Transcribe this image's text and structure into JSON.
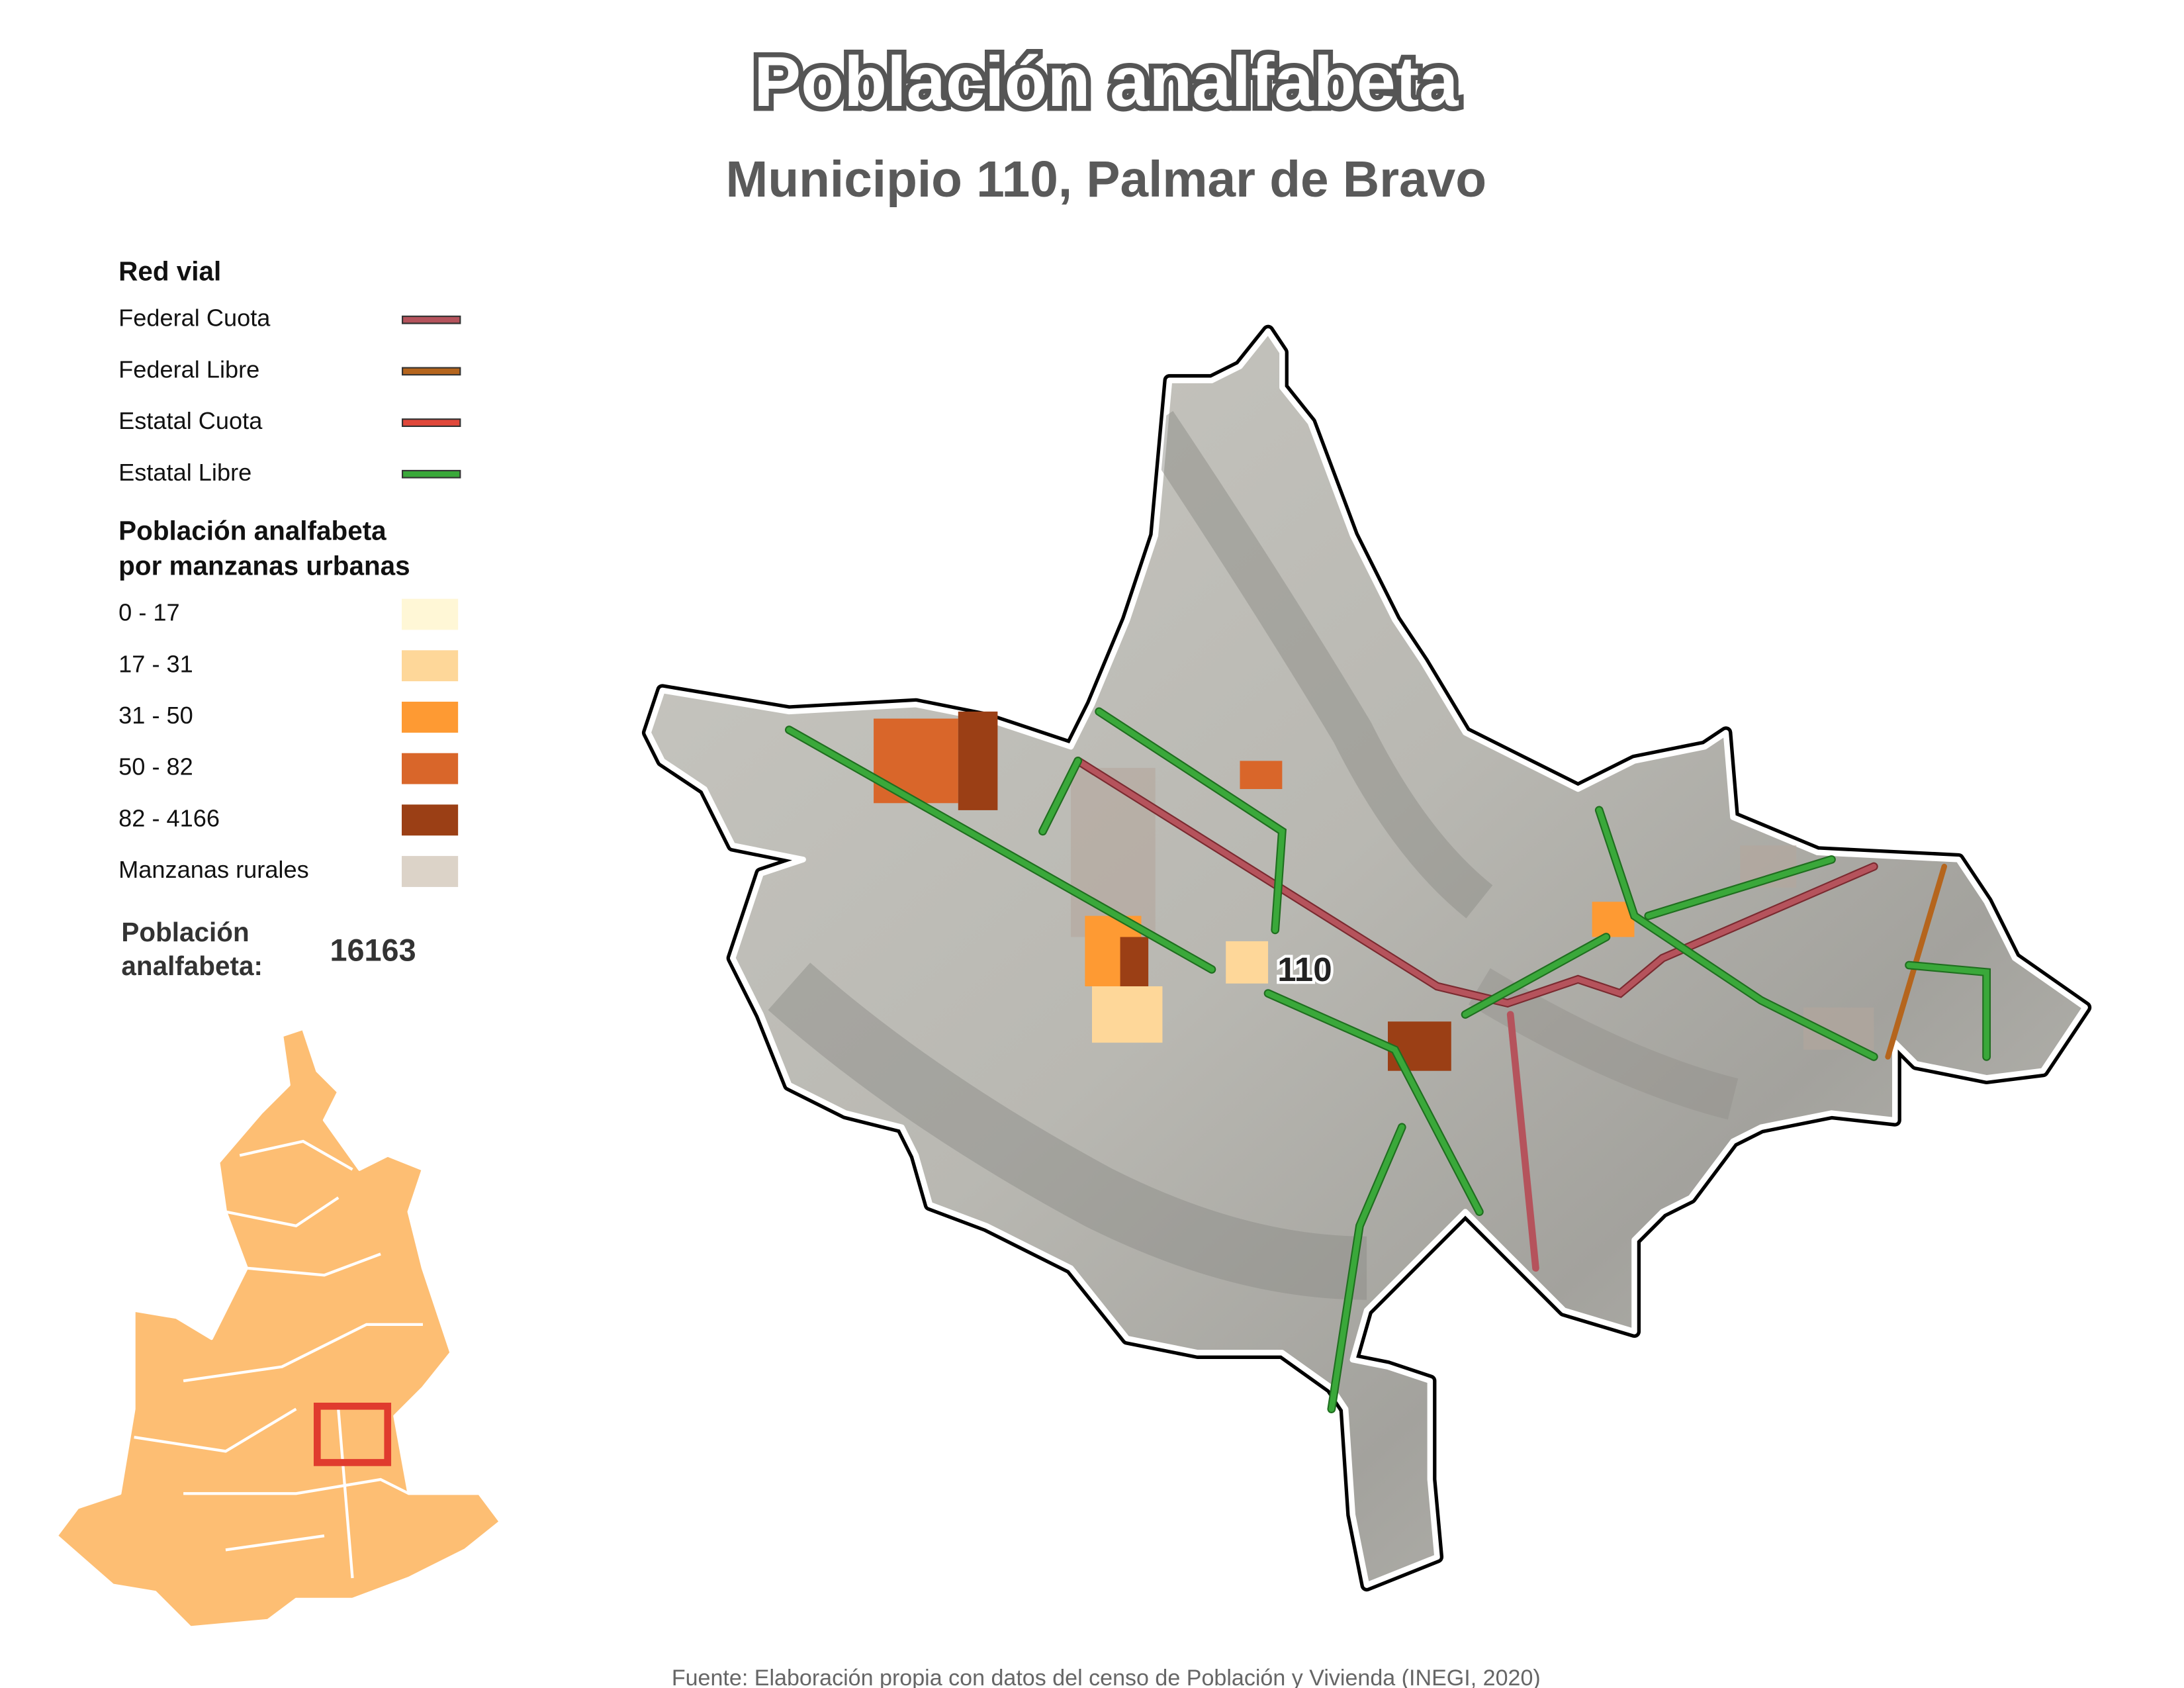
{
  "title": "Población analfabeta",
  "subtitle": "Municipio 110, Palmar de Bravo",
  "legend": {
    "roads": {
      "title": "Red vial",
      "items": [
        {
          "label": "Federal Cuota",
          "color": "#b5535c"
        },
        {
          "label": "Federal Libre",
          "color": "#b5651d"
        },
        {
          "label": "Estatal Cuota",
          "color": "#e0483b"
        },
        {
          "label": "Estatal Libre",
          "color": "#3aa83a"
        }
      ]
    },
    "population": {
      "title_lines": [
        "Población analfabeta",
        "por manzanas urbanas"
      ],
      "items": [
        {
          "label": "0 - 17",
          "color": "#fff7d6"
        },
        {
          "label": "17 - 31",
          "color": "#fed799"
        },
        {
          "label": "31 - 50",
          "color": "#fe9a33"
        },
        {
          "label": "50 - 82",
          "color": "#d9662a"
        },
        {
          "label": "82 - 4166",
          "color": "#9b3f15"
        },
        {
          "label": "Manzanas rurales",
          "color": "#dcd3c8"
        }
      ]
    },
    "total": {
      "label_lines": [
        "Población",
        "analfabeta:"
      ],
      "value": 16163
    }
  },
  "map": {
    "municipality_label": "110"
  },
  "source": "Fuente: Elaboración propia con datos del censo de Población y Vivienda (INEGI, 2020)"
}
